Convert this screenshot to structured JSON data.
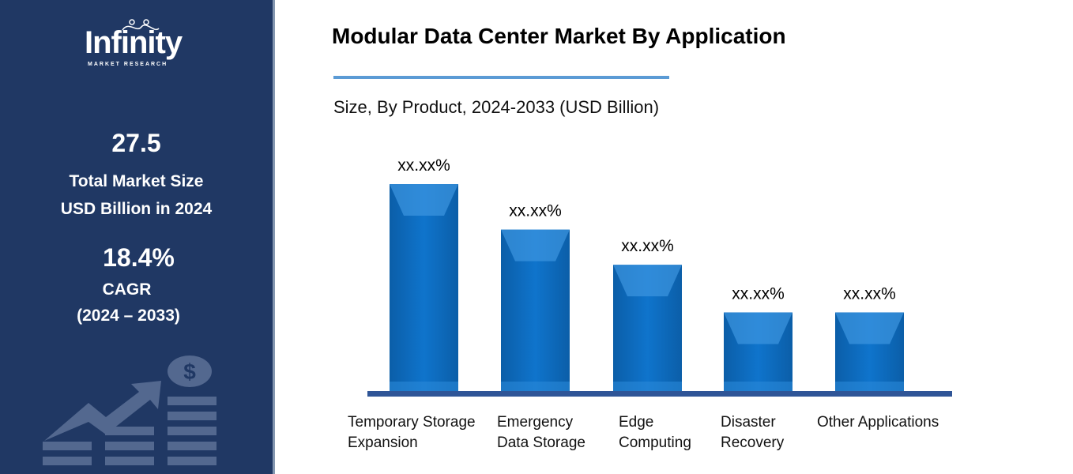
{
  "sidebar": {
    "logo": {
      "name": "Infinity",
      "tagline": "MARKET RESEARCH"
    },
    "market_size": "27.5",
    "market_size_label_1": "Total Market Size",
    "market_size_label_2": "USD Billion in 2024",
    "cagr": "18.4%",
    "cagr_label": "CAGR",
    "cagr_period": "(2024 – 2033)",
    "decor_icon": "growth-chart-dollar-icon"
  },
  "colors": {
    "sidebar": "#203864",
    "bar": "#0e6fc4",
    "baseline": "#2f5597",
    "rule": "#5b9bd5"
  },
  "chart_data": {
    "type": "bar",
    "title": "Modular Data Center Market By Application",
    "subtitle": "Size, By Product, 2024-2033 (USD Billion)",
    "categories": [
      "Temporary Storage\nExpansion",
      "Emergency\nData Storage",
      "Edge\nComputing",
      "Disaster\nRecovery",
      "Other Applications"
    ],
    "values": [
      100,
      78,
      61,
      38,
      38
    ],
    "data_labels": [
      "xx.xx%",
      "xx.xx%",
      "xx.xx%",
      "xx.xx%",
      "xx.xx%"
    ],
    "value_note": "relative bar heights (no axis printed)",
    "grid": false,
    "legend": "none"
  }
}
